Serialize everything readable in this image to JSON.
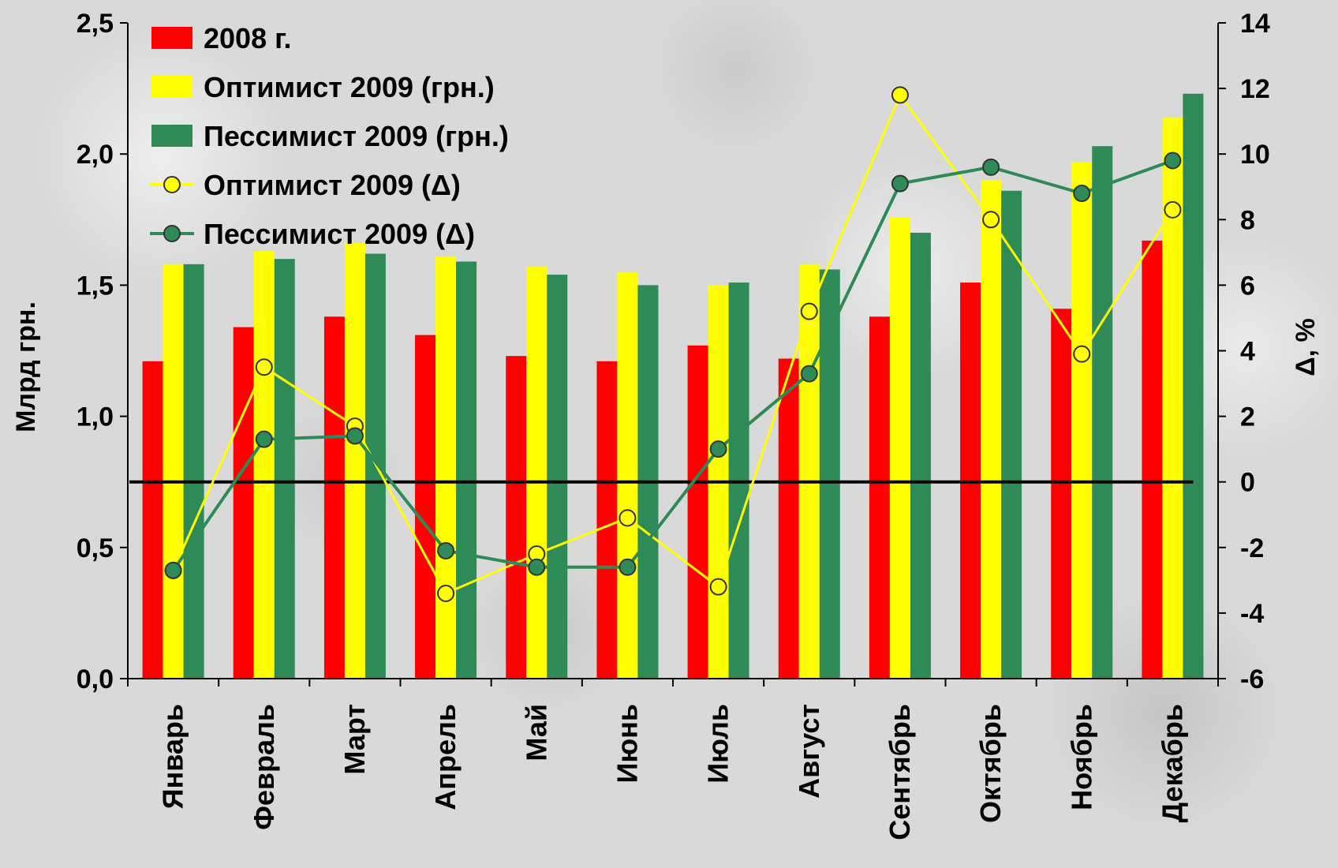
{
  "chart_data": {
    "type": "bar",
    "categories": [
      "Январь",
      "Февраль",
      "Март",
      "Апрель",
      "Май",
      "Июнь",
      "Июль",
      "Август",
      "Сентябрь",
      "Октябрь",
      "Ноябрь",
      "Декабрь"
    ],
    "ylabel": "Млрд грн.",
    "y2label": "Δ, %",
    "ylim": [
      0,
      2.5
    ],
    "y2lim": [
      -6,
      14
    ],
    "yticks": [
      "0,0",
      "0,5",
      "1,0",
      "1,5",
      "2,0",
      "2,5"
    ],
    "y2ticks": [
      "-6",
      "-4",
      "-2",
      "0",
      "2",
      "4",
      "6",
      "8",
      "10",
      "12",
      "14"
    ],
    "legend_position": "top-left",
    "bar_series": [
      {
        "name": "2008 г.",
        "color": "#ff0000",
        "values": [
          1.21,
          1.34,
          1.38,
          1.31,
          1.23,
          1.21,
          1.27,
          1.22,
          1.38,
          1.51,
          1.41,
          1.67
        ]
      },
      {
        "name": "Оптимист 2009 (грн.)",
        "color": "#ffff00",
        "values": [
          1.58,
          1.63,
          1.66,
          1.61,
          1.57,
          1.55,
          1.5,
          1.58,
          1.76,
          1.9,
          1.97,
          2.14
        ]
      },
      {
        "name": "Пессимист 2009 (грн.)",
        "color": "#2e8b57",
        "values": [
          1.58,
          1.6,
          1.62,
          1.59,
          1.54,
          1.5,
          1.51,
          1.56,
          1.7,
          1.86,
          2.03,
          2.23
        ]
      }
    ],
    "line_series": [
      {
        "name": "Оптимист 2009 (Δ)",
        "color": "#ffff00",
        "marker": "#ffff00",
        "values": [
          -2.7,
          3.5,
          1.7,
          -3.4,
          -2.2,
          -1.1,
          -3.2,
          5.2,
          11.8,
          8.0,
          3.9,
          8.3
        ]
      },
      {
        "name": "Пессимист 2009 (Δ)",
        "color": "#2e8b57",
        "marker": "#2e8b57",
        "values": [
          -2.7,
          1.3,
          1.4,
          -2.1,
          -2.6,
          -2.6,
          1.0,
          3.3,
          9.1,
          9.6,
          8.8,
          9.8
        ]
      }
    ],
    "reference_line": {
      "y2": 0,
      "color": "#000000"
    }
  }
}
